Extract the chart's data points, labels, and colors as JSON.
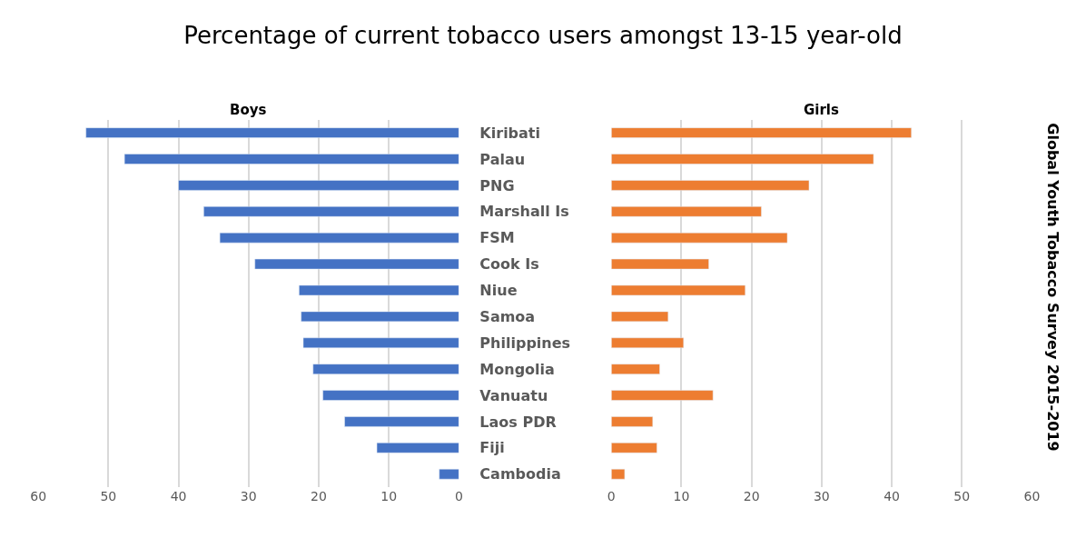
{
  "chart_data": [
    {
      "type": "bar",
      "orientation": "horizontal",
      "title": "Percentage of current tobacco users amongst 13-15 year-old",
      "categories": [
        "Kiribati",
        "Palau",
        "PNG",
        "Marshall Is",
        "FSM",
        "Cook Is",
        "Niue",
        "Samoa",
        "Philippines",
        "Mongolia",
        "Vanuatu",
        "Laos PDR",
        "Fiji",
        "Cambodia"
      ],
      "series": [
        {
          "name": "Boys",
          "color": "#4472c4",
          "values": [
            53.2,
            47.7,
            40.0,
            36.4,
            34.1,
            29.1,
            22.8,
            22.5,
            22.2,
            20.8,
            19.4,
            16.3,
            11.7,
            2.8
          ]
        }
      ],
      "xlim": [
        60,
        0
      ],
      "xticks": [
        60,
        50,
        40,
        30,
        20,
        10,
        0
      ],
      "grid": "x"
    },
    {
      "type": "bar",
      "orientation": "horizontal",
      "categories": [
        "Kiribati",
        "Palau",
        "PNG",
        "Marshall Is",
        "FSM",
        "Cook Is",
        "Niue",
        "Samoa",
        "Philippines",
        "Mongolia",
        "Vanuatu",
        "Laos PDR",
        "Fiji",
        "Cambodia"
      ],
      "series": [
        {
          "name": "Girls",
          "color": "#ed7d31",
          "values": [
            42.8,
            37.4,
            28.2,
            21.4,
            25.1,
            13.9,
            19.1,
            8.1,
            10.3,
            6.9,
            14.5,
            5.9,
            6.5,
            1.9
          ]
        }
      ],
      "xlim": [
        0,
        60
      ],
      "xticks": [
        0,
        10,
        20,
        30,
        40,
        50,
        60
      ],
      "grid": "x",
      "tick_labels": "x",
      "annotations": [
        "Global Youth Tobacco Survey 2015-2019"
      ]
    }
  ]
}
